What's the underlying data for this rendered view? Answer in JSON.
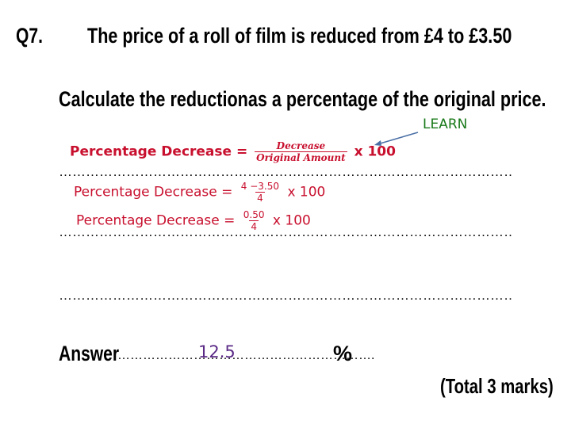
{
  "question": {
    "number": "Q7.",
    "text": "The price of a roll of film is reduced from £4 to £3.50",
    "instruction": "Calculate the reductionas a percentage of the original price."
  },
  "annotation": {
    "learn": "LEARN"
  },
  "working": {
    "formula": {
      "label": "Percentage Decrease =",
      "numerator": "Decrease",
      "denominator": "Original Amount",
      "multiplier": "x 100"
    },
    "step1": {
      "label": "Percentage Decrease =",
      "numerator": "4 −3.50",
      "denominator": "4",
      "multiplier": "x 100"
    },
    "step2": {
      "label": "Percentage Decrease =",
      "numerator": "0.50",
      "denominator": "4",
      "multiplier": "x 100"
    }
  },
  "dotted_line": "……………………………………………………………………………………………………..",
  "answer": {
    "label": "Answer",
    "dots": "…………………………………………………….",
    "value": "12.5",
    "unit": "%"
  },
  "total": "(Total 3 marks)",
  "colors": {
    "working_red": "#c8102e",
    "learn_green": "#1a7a1a",
    "answer_purple": "#5b2a86",
    "arrow_blue": "#4a6fa5"
  }
}
